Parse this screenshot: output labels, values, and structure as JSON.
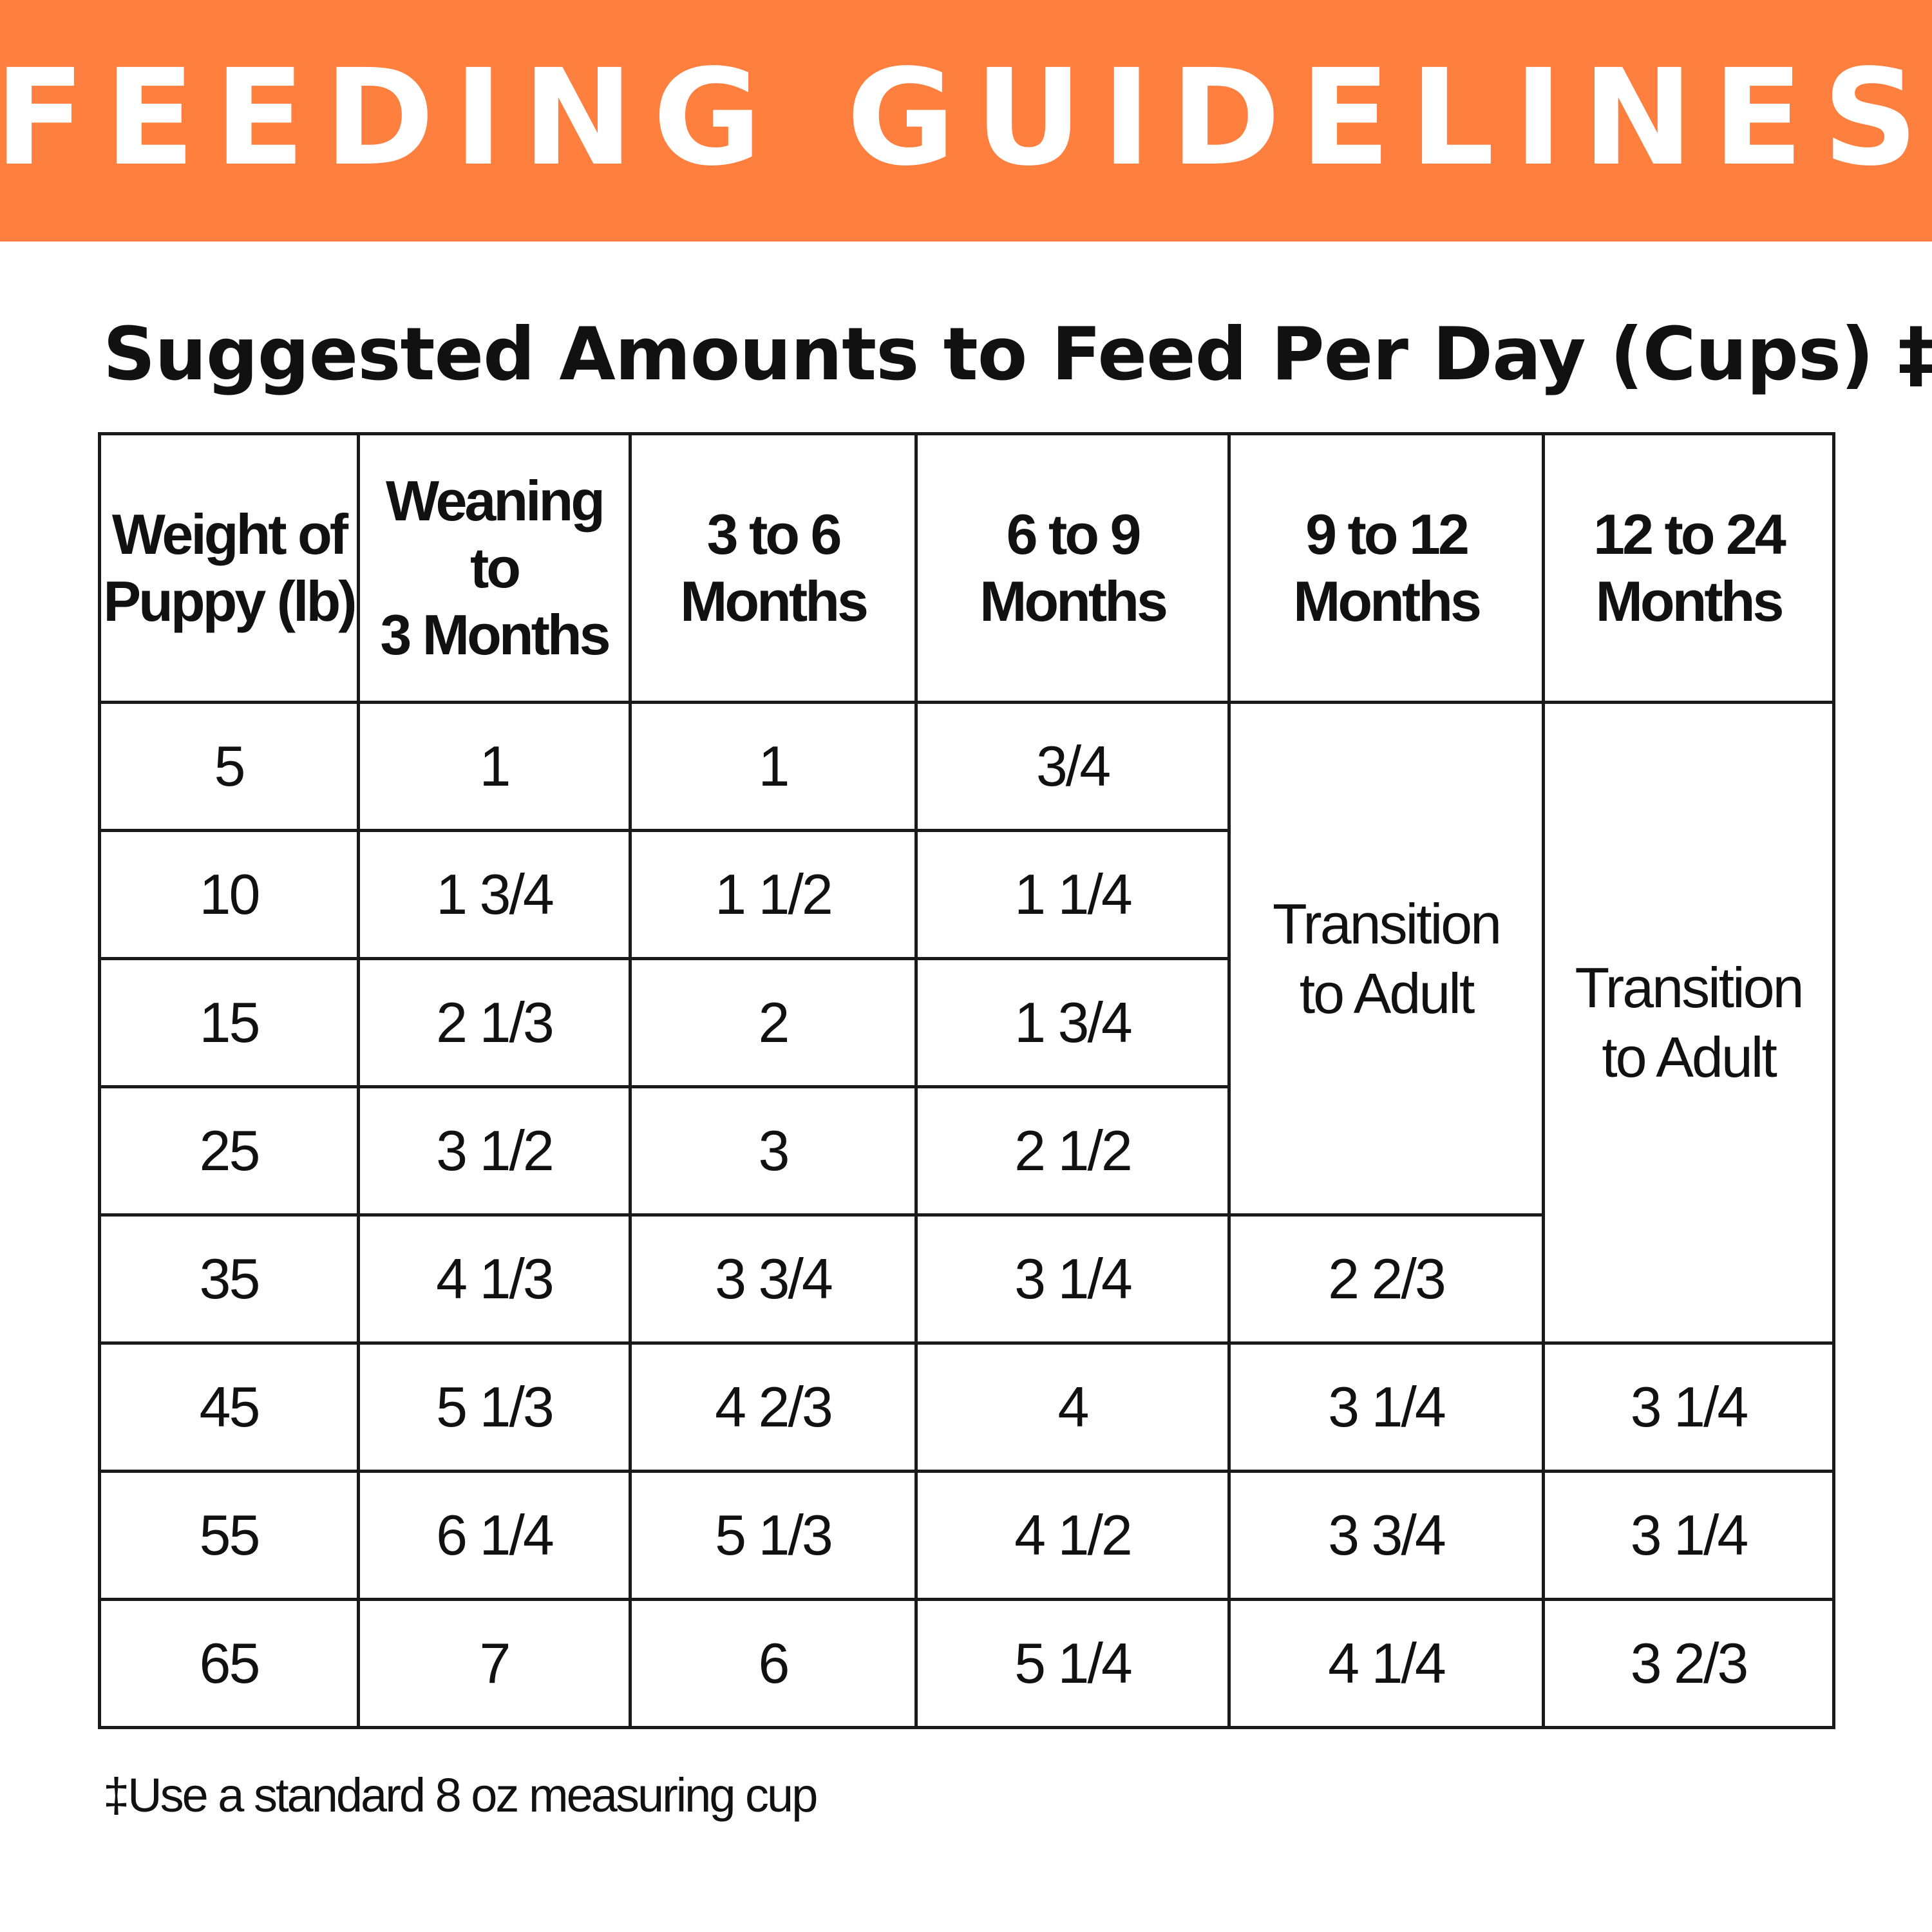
{
  "colors": {
    "banner_bg": "#ff7f3f",
    "banner_text": "#ffffff",
    "grid_line": "#1a1a1a"
  },
  "banner": {
    "title": "FEEDING GUIDELINES"
  },
  "subtitle": "Suggested Amounts to Feed Per Day (Cups) ‡",
  "table": {
    "headers": [
      [
        "Weight of",
        "Puppy (lb)"
      ],
      [
        "Weaning to",
        "3 Months"
      ],
      [
        "3 to 6",
        "Months"
      ],
      [
        "6 to 9",
        "Months"
      ],
      [
        "9 to 12",
        "Months"
      ],
      [
        "12 to 24",
        "Months"
      ]
    ],
    "rows": [
      [
        "5",
        "1",
        "1",
        "3/4"
      ],
      [
        "10",
        "1 3/4",
        "1 1/2",
        "1 1/4"
      ],
      [
        "15",
        "2 1/3",
        "2",
        "1 3/4"
      ],
      [
        "25",
        "3 1/2",
        "3",
        "2 1/2"
      ],
      [
        "35",
        "4 1/3",
        "3 3/4",
        "3 1/4",
        "2 2/3"
      ],
      [
        "45",
        "5 1/3",
        "4 2/3",
        "4",
        "3 1/4",
        "3 1/4"
      ],
      [
        "55",
        "6 1/4",
        "5 1/3",
        "4 1/2",
        "3 3/4",
        "3 1/4"
      ],
      [
        "65",
        "7",
        "6",
        "5 1/4",
        "4 1/4",
        "3 2/3"
      ]
    ],
    "merged": {
      "col5": [
        "Transition",
        "to Adult"
      ],
      "col6": [
        "Transition",
        "to Adult"
      ]
    }
  },
  "footnote": "‡Use a standard 8 oz measuring cup"
}
